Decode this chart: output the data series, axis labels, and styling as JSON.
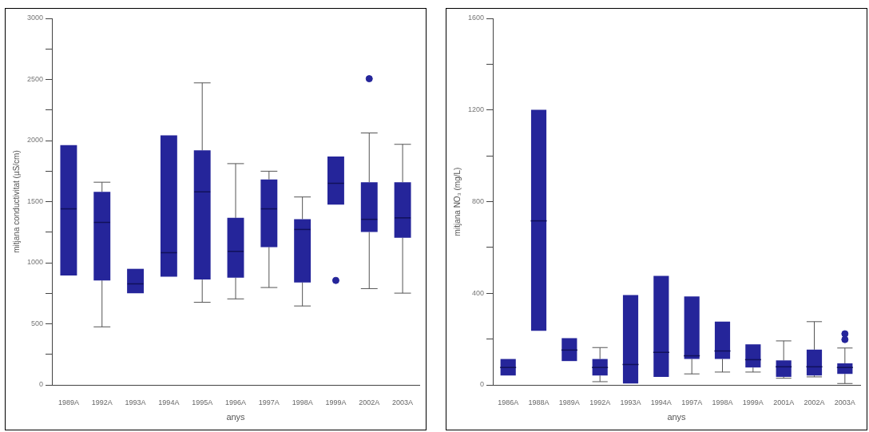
{
  "chart_data": [
    {
      "type": "box",
      "xlabel": "anys",
      "ylabel": "mitjana conductivitat (µS/cm)",
      "categories": [
        "1989A",
        "1992A",
        "1993A",
        "1994A",
        "1995A",
        "1996A",
        "1997A",
        "1998A",
        "1999A",
        "2002A",
        "2003A"
      ],
      "ylim": [
        0,
        3000
      ],
      "yticks": [
        0,
        {
          "value": 250,
          "label": null
        },
        500,
        {
          "value": 750,
          "label": null
        },
        1000,
        {
          "value": 1250,
          "label": null
        },
        1500,
        {
          "value": 1750,
          "label": null
        },
        2000,
        {
          "value": 2250,
          "label": null
        },
        2500,
        {
          "value": 2750,
          "label": null
        },
        3000
      ],
      "grid": false,
      "legend": false,
      "color": "#25259a",
      "boxes": [
        {
          "low": 896,
          "q1": 896,
          "median": 1441,
          "q3": 1963,
          "high": 1963
        },
        {
          "low": 475,
          "q1": 855,
          "median": 1330,
          "q3": 1580,
          "high": 1659
        },
        {
          "low": 750,
          "q1": 750,
          "median": 827,
          "q3": 950,
          "high": 950
        },
        {
          "low": 885,
          "q1": 885,
          "median": 1082,
          "q3": 2043,
          "high": 2043
        },
        {
          "low": 676,
          "q1": 862,
          "median": 1580,
          "q3": 1920,
          "high": 2472
        },
        {
          "low": 704,
          "q1": 878,
          "median": 1093,
          "q3": 1367,
          "high": 1811
        },
        {
          "low": 797,
          "q1": 1128,
          "median": 1441,
          "q3": 1682,
          "high": 1749
        },
        {
          "low": 646,
          "q1": 839,
          "median": 1272,
          "q3": 1357,
          "high": 1538
        },
        {
          "low": 1476,
          "q1": 1476,
          "median": 1650,
          "q3": 1869,
          "high": 1869,
          "outliers": [
            855
          ]
        },
        {
          "low": 788,
          "q1": 1251,
          "median": 1355,
          "q3": 1659,
          "high": 2062,
          "outliers": [
            2506
          ]
        },
        {
          "low": 751,
          "q1": 1205,
          "median": 1367,
          "q3": 1659,
          "high": 1969
        }
      ]
    },
    {
      "type": "box",
      "xlabel": "anys",
      "ylabel": "mitjana NO₃ (mg/L)",
      "categories": [
        "1986A",
        "1988A",
        "1989A",
        "1992A",
        "1993A",
        "1994A",
        "1997A",
        "1998A",
        "1999A",
        "2001A",
        "2002A",
        "2003A"
      ],
      "ylim": [
        0,
        1600
      ],
      "yticks": [
        0,
        {
          "value": 200,
          "label": null
        },
        400,
        {
          "value": 600,
          "label": null
        },
        800,
        {
          "value": 1000,
          "label": null
        },
        1200,
        {
          "value": 1400,
          "label": null
        },
        1600
      ],
      "grid": false,
      "legend": false,
      "color": "#25259a",
      "boxes": [
        {
          "low": 41,
          "q1": 41,
          "median": 76,
          "q3": 113,
          "high": 113
        },
        {
          "low": 236,
          "q1": 236,
          "median": 716,
          "q3": 1201,
          "high": 1201
        },
        {
          "low": 104,
          "q1": 104,
          "median": 152,
          "q3": 204,
          "high": 204
        },
        {
          "low": 14,
          "q1": 41,
          "median": 76,
          "q3": 113,
          "high": 163
        },
        {
          "low": 6,
          "q1": 6,
          "median": 89,
          "q3": 392,
          "high": 392
        },
        {
          "low": 35,
          "q1": 35,
          "median": 142,
          "q3": 476,
          "high": 476
        },
        {
          "low": 48,
          "q1": 113,
          "median": 127,
          "q3": 386,
          "high": 386
        },
        {
          "low": 56,
          "q1": 113,
          "median": 148,
          "q3": 276,
          "high": 276
        },
        {
          "low": 56,
          "q1": 76,
          "median": 110,
          "q3": 177,
          "high": 177
        },
        {
          "low": 29,
          "q1": 35,
          "median": 79,
          "q3": 107,
          "high": 192
        },
        {
          "low": 35,
          "q1": 41,
          "median": 79,
          "q3": 154,
          "high": 276
        },
        {
          "low": 6,
          "q1": 48,
          "median": 76,
          "q3": 94,
          "high": 161,
          "outliers": [
            223,
            198
          ]
        }
      ]
    }
  ]
}
